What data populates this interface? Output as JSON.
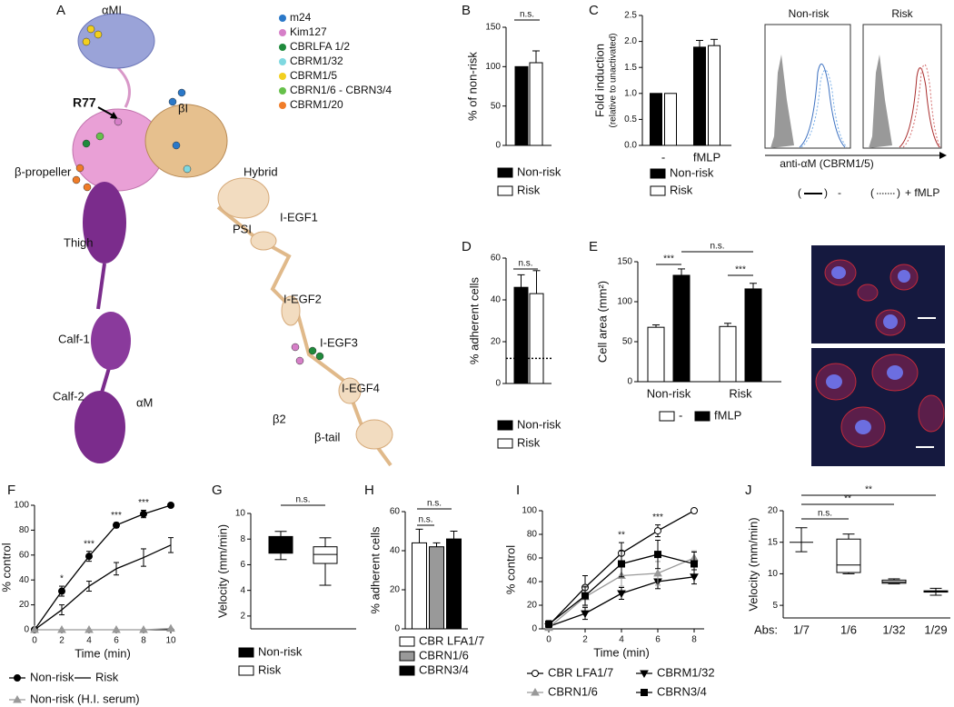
{
  "structure": {
    "panel": "A",
    "labels": [
      "αMI",
      "R77",
      "βI",
      "β-propeller",
      "Hybrid",
      "PSI",
      "I-EGF1",
      "Thigh",
      "I-EGF2",
      "Calf-1",
      "I-EGF3",
      "Calf-2",
      "αM",
      "I-EGF4",
      "β2",
      "β-tail"
    ],
    "legend": [
      {
        "name": "m24",
        "color": "#2a78c8"
      },
      {
        "name": "Kim127",
        "color": "#d67fc8"
      },
      {
        "name": "CBRLFA 1/2",
        "color": "#1f8a3c"
      },
      {
        "name": "CBRM1/32",
        "color": "#7fd8e0"
      },
      {
        "name": "CBRM1/5",
        "color": "#f2cf1e"
      },
      {
        "name": "CBRN1/6 - CBRN3/4",
        "color": "#66c04a"
      },
      {
        "name": "CBRM1/20",
        "color": "#f07c28"
      }
    ]
  },
  "flow_cytometry": {
    "titles": [
      "Non-risk",
      "Risk"
    ],
    "xlabel": "anti-αM (CBRM1/5)",
    "legend": [
      "-",
      "+ fMLP"
    ],
    "bracket": [
      "(",
      ")"
    ]
  },
  "chart_data": [
    {
      "panel": "B",
      "type": "bar",
      "ylabel": "% of non-risk",
      "categories": [
        null
      ],
      "series": [
        {
          "name": "Non-risk",
          "color": "#000000",
          "values": [
            100
          ]
        },
        {
          "name": "Risk",
          "color": "#ffffff",
          "values": [
            105
          ],
          "errors": [
            15
          ]
        }
      ],
      "ylim": [
        0,
        150
      ],
      "yticks": [
        0,
        50,
        100,
        150
      ],
      "annotations": [
        "n.s."
      ]
    },
    {
      "panel": "C",
      "type": "bar",
      "ylabel": "Fold induction",
      "ylabel_sub": "(relative to unactivated)",
      "categories": [
        "-",
        "fMLP"
      ],
      "series": [
        {
          "name": "Non-risk",
          "color": "#000000",
          "values": [
            1,
            1.89
          ],
          "errors": [
            null,
            0.13
          ]
        },
        {
          "name": "Risk",
          "color": "#ffffff",
          "values": [
            1,
            1.92
          ],
          "errors": [
            null,
            0.12
          ]
        }
      ],
      "ylim": [
        0,
        2.5
      ],
      "yticks": [
        {
          "value": 0,
          "label": "0.0"
        },
        {
          "value": 0.5,
          "label": "0.5"
        },
        {
          "value": 1,
          "label": "1.0"
        },
        {
          "value": 1.5,
          "label": "1.5"
        },
        {
          "value": 2,
          "label": "2.0"
        },
        {
          "value": 2.5,
          "label": "2.5"
        }
      ]
    },
    {
      "panel": "D",
      "type": "bar",
      "ylabel": "% adherent cells",
      "categories": [
        null
      ],
      "series": [
        {
          "name": "Non-risk",
          "color": "#000000",
          "values": [
            46
          ],
          "errors": [
            6
          ]
        },
        {
          "name": "Risk",
          "color": "#ffffff",
          "values": [
            43
          ],
          "errors": [
            11
          ]
        }
      ],
      "ylim": [
        0,
        60
      ],
      "yticks": [
        0,
        20,
        40,
        60
      ],
      "baseline": 12,
      "annotations": [
        "n.s."
      ]
    },
    {
      "panel": "E",
      "type": "bar",
      "ylabel": "Cell area (mm²)",
      "categories": [
        "Non-risk",
        "Risk"
      ],
      "series": [
        {
          "name": "-",
          "color": "#ffffff",
          "values": [
            68,
            69
          ],
          "errors": [
            3,
            4
          ]
        },
        {
          "name": "fMLP",
          "color": "#000000",
          "values": [
            133,
            116
          ],
          "errors": [
            8,
            7
          ]
        }
      ],
      "ylim": [
        0,
        150
      ],
      "yticks": [
        0,
        50,
        100,
        150
      ],
      "annotations": [
        "***",
        "n.s.",
        "***"
      ]
    },
    {
      "panel": "F",
      "type": "line",
      "xlabel": "Time (min)",
      "ylabel": "% control",
      "x": [
        0,
        2,
        4,
        6,
        8,
        10
      ],
      "xlim": [
        0,
        10
      ],
      "xticks": [
        0,
        2,
        4,
        6,
        8,
        10
      ],
      "ylim": [
        0,
        100
      ],
      "yticks": [
        0,
        20,
        40,
        60,
        80,
        100
      ],
      "series": [
        {
          "name": "Non-risk",
          "color": "#000000",
          "marker": "circle",
          "values": [
            0,
            31,
            59,
            84,
            93,
            100
          ],
          "errors": [
            0,
            4,
            4,
            2,
            3,
            0
          ]
        },
        {
          "name": "Risk",
          "color": "#000000",
          "marker": "none",
          "values": [
            0,
            16,
            35,
            49,
            58,
            68
          ],
          "errors": [
            0,
            4,
            4,
            5,
            7,
            6
          ]
        },
        {
          "name": "Non-risk (H.I. serum)",
          "color": "#999999",
          "marker": "triangle",
          "values": [
            0,
            0,
            0,
            0,
            0,
            1
          ],
          "errors": [
            0,
            0,
            0,
            0,
            0,
            0
          ]
        }
      ],
      "annotations": [
        {
          "x": 2,
          "text": "*"
        },
        {
          "x": 4,
          "text": "***"
        },
        {
          "x": 6,
          "text": "***"
        },
        {
          "x": 8,
          "text": "***"
        }
      ]
    },
    {
      "panel": "G",
      "type": "box",
      "ylabel": "Velocity (mm/min)",
      "categories": [
        null,
        null
      ],
      "boxes": [
        {
          "name": "Non-risk",
          "color": "#000000",
          "min": 6.4,
          "q1": 6.9,
          "median": 7.5,
          "q3": 8.2,
          "max": 8.6
        },
        {
          "name": "Risk",
          "color": "#ffffff",
          "min": 4.4,
          "q1": 6.1,
          "median": 6.8,
          "q3": 7.4,
          "max": 8.1
        }
      ],
      "ylim": [
        1,
        10
      ],
      "yticks": [
        2,
        4,
        6,
        8,
        10
      ],
      "annotations": [
        "n.s."
      ]
    },
    {
      "panel": "H",
      "type": "bar",
      "ylabel": "% adherent cells",
      "categories": [
        null
      ],
      "series": [
        {
          "name": "CBR LFA1/7",
          "color": "#ffffff",
          "values": [
            44
          ],
          "errors": [
            7
          ]
        },
        {
          "name": "CBRN1/6",
          "color": "#999999",
          "values": [
            42
          ],
          "errors": [
            2
          ]
        },
        {
          "name": "CBRN3/4",
          "color": "#000000",
          "values": [
            46
          ],
          "errors": [
            4
          ]
        }
      ],
      "ylim": [
        0,
        60
      ],
      "yticks": [
        0,
        20,
        40,
        60
      ],
      "annotations": [
        "n.s.",
        "n.s."
      ]
    },
    {
      "panel": "I",
      "type": "line",
      "xlabel": "Time (min)",
      "ylabel": "% control",
      "x": [
        0,
        2,
        4,
        6,
        8
      ],
      "xlim": [
        0,
        8
      ],
      "xticks": [
        0,
        2,
        4,
        6,
        8
      ],
      "ylim": [
        0,
        100
      ],
      "yticks": [
        0,
        20,
        40,
        60,
        80,
        100
      ],
      "series": [
        {
          "name": "CBR LFA1/7",
          "color": "#000000",
          "marker": "open-circle",
          "values": [
            3,
            35,
            64,
            83,
            100
          ],
          "errors": [
            2,
            10,
            9,
            5,
            0
          ]
        },
        {
          "name": "CBRM1/32",
          "color": "#000000",
          "marker": "triangle-down",
          "values": [
            2,
            13,
            30,
            40,
            44
          ],
          "errors": [
            2,
            5,
            5,
            6,
            6
          ]
        },
        {
          "name": "CBRN1/6",
          "color": "#999999",
          "marker": "triangle",
          "values": [
            1,
            27,
            45,
            47,
            60
          ],
          "errors": [
            2,
            8,
            9,
            10,
            6
          ]
        },
        {
          "name": "CBRN3/4",
          "color": "#000000",
          "marker": "square",
          "values": [
            4,
            28,
            55,
            63,
            55
          ],
          "errors": [
            3,
            8,
            11,
            12,
            10
          ]
        }
      ],
      "annotations": [
        {
          "x": 4,
          "text": "**"
        },
        {
          "x": 6,
          "text": "***"
        }
      ]
    },
    {
      "panel": "J",
      "type": "box",
      "ylabel": "Velocity (mm/min)",
      "x_axis_label": "Abs:",
      "categories": [
        "1/7",
        "1/6",
        "1/32",
        "1/29"
      ],
      "boxes": [
        {
          "color": "#ffffff",
          "min": 13.5,
          "q1": 15,
          "median": 15,
          "q3": 15,
          "max": 17.3
        },
        {
          "color": "#ffffff",
          "min": 10,
          "q1": 10.2,
          "median": 11.4,
          "q3": 15.5,
          "max": 16.3
        },
        {
          "color": "#ffffff",
          "min": 8.4,
          "q1": 8.5,
          "median": 8.7,
          "q3": 9,
          "max": 9.2
        },
        {
          "color": "#ffffff",
          "min": 6.6,
          "q1": 7.1,
          "median": 7.2,
          "q3": 7.3,
          "max": 7.7
        }
      ],
      "ylim": [
        3,
        20
      ],
      "yticks": [
        5,
        10,
        15,
        20
      ],
      "annotations": [
        "n.s.",
        "**",
        "**"
      ]
    }
  ]
}
